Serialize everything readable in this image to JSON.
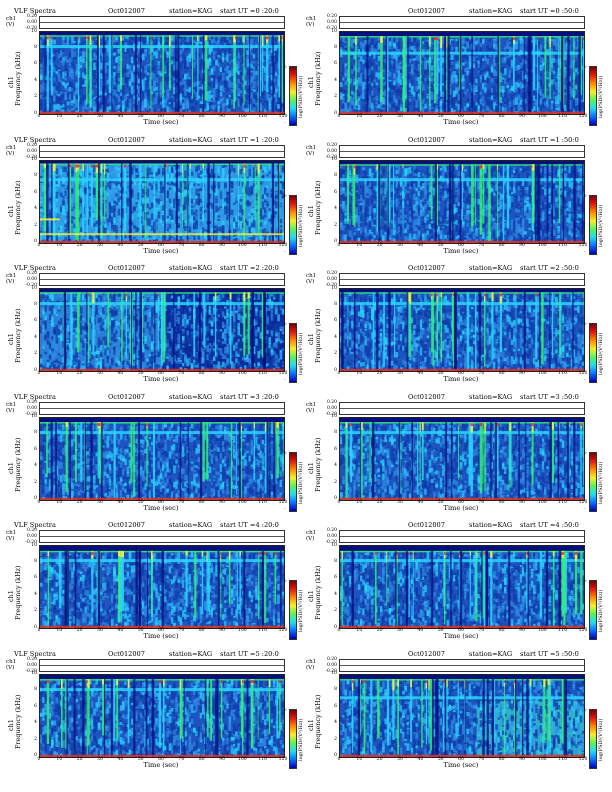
{
  "colors": {
    "spec_base": "#1d54c0",
    "spec_dark": "#04107e",
    "spec_cyan": "#2ad5ff",
    "spec_green": "#34f070",
    "spec_yellow": "#f2f23a",
    "spec_red": "#e83020",
    "colorbar": [
      "#7a0000",
      "#e21b10",
      "#ff8c00",
      "#f6ee2c",
      "#57f25c",
      "#25d9f3",
      "#0a6eff",
      "#0000b6"
    ]
  },
  "common": {
    "ch_label_line1": "ch1",
    "ch_label_line2": "(V)",
    "strip_ticks": [
      "0.20",
      "0.00",
      "-0.20"
    ],
    "y_ticks": [
      "10",
      "8",
      "6",
      "4",
      "2",
      "0"
    ],
    "x_ticks": [
      "0",
      "10",
      "20",
      "30",
      "40",
      "50",
      "60",
      "70",
      "80",
      "90",
      "100",
      "110",
      "120"
    ],
    "x_label": "Time  (sec)",
    "y_label_ch": "ch1",
    "y_label": "Frequency  (kHz)",
    "colorbar_label": "log(PSD/(V²/Hz))",
    "colorbar_ticks": [
      "0",
      "-",
      "-",
      "-",
      "-"
    ]
  },
  "panels": [
    {
      "title": "VLF Spectra",
      "date": "Oct012007",
      "station": "station=KAG",
      "start": "start  UT =0 :20:0",
      "level": "low",
      "band_top": 9.6,
      "band": 8.0
    },
    {
      "title": "",
      "date": "Oct012007",
      "station": "station=KAG",
      "start": "start  UT =0 :50:0",
      "level": "low",
      "band_top": 9.5,
      "band": 7.2
    },
    {
      "title": "VLF Spectra",
      "date": "Oct012007",
      "station": "station=KAG",
      "start": "start  UT =1 :20:0",
      "level": "high",
      "band_top": 9.7,
      "band": 7.5
    },
    {
      "title": "",
      "date": "Oct012007",
      "station": "station=KAG",
      "start": "start  UT =1 :50:0",
      "level": "low",
      "band_top": 9.6,
      "band": 7.5
    },
    {
      "title": "VLF Spectra",
      "date": "Oct012007",
      "station": "station=KAG",
      "start": "start  UT =2 :20:0",
      "level": "mixed",
      "band_top": 9.6,
      "band": 8.0
    },
    {
      "title": "",
      "date": "Oct012007",
      "station": "station=KAG",
      "start": "start  UT =2 :50:0",
      "level": "low",
      "band_top": 9.6,
      "band": 8.0
    },
    {
      "title": "VLF Spectra",
      "date": "Oct012007",
      "station": "station=KAG",
      "start": "start  UT =3 :20:0",
      "level": "low",
      "band_top": 9.5,
      "band": 8.0
    },
    {
      "title": "",
      "date": "Oct012007",
      "station": "station=KAG",
      "start": "start  UT =3 :50:0",
      "level": "low",
      "band_top": 9.5,
      "band": 8.0
    },
    {
      "title": "VLF Spectra",
      "date": "Oct012007",
      "station": "station=KAG",
      "start": "start  UT =4 :20:0",
      "level": "low",
      "band_top": 9.4,
      "band": 8.0
    },
    {
      "title": "",
      "date": "Oct012007",
      "station": "station=KAG",
      "start": "start  UT =4 :50:0",
      "level": "low",
      "band_top": 9.4,
      "band": 8.0
    },
    {
      "title": "VLF Spectra",
      "date": "Oct012007",
      "station": "station=KAG",
      "start": "start  UT =5 :20:0",
      "level": "low",
      "band_top": 9.5,
      "band": 8.0
    },
    {
      "title": "",
      "date": "Oct012007",
      "station": "station=KAG",
      "start": "start  UT =5 :50:0",
      "level": "mixed-right",
      "band_top": 9.5,
      "band": 7.0
    }
  ],
  "chart_data": {
    "type": "heatmap",
    "x_range": [
      0,
      120
    ],
    "y_range": [
      0,
      10
    ],
    "strip_range": [
      -0.2,
      0.2
    ]
  }
}
